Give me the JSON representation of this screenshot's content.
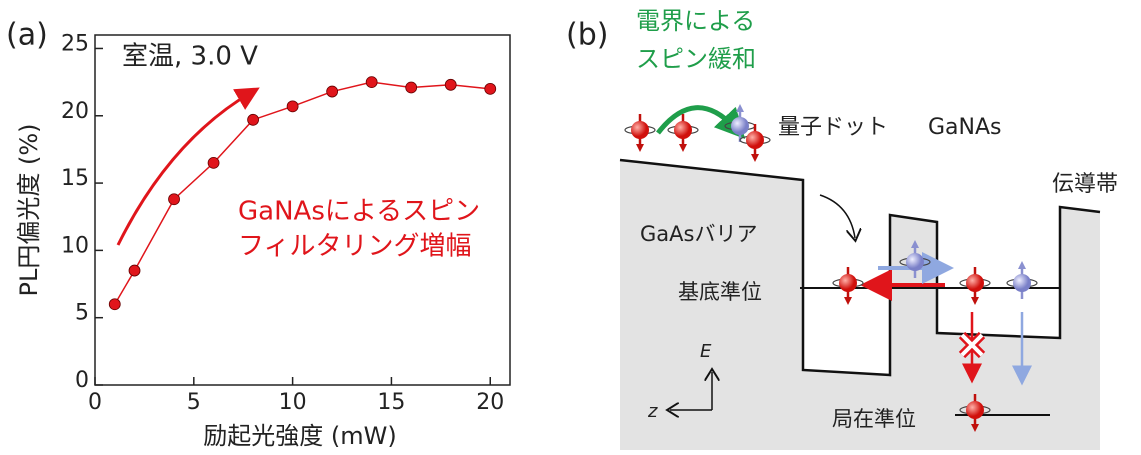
{
  "chart_data": {
    "type": "line",
    "panel_label": "(a)",
    "xlabel": "励起光強度 (mW)",
    "ylabel": "PL円偏光度 (%)",
    "annotations": [
      "室温, 3.0 V",
      "GaNAsによるスピン",
      "フィルタリング増幅"
    ],
    "x": [
      1,
      2,
      4,
      6,
      8,
      10,
      12,
      14,
      16,
      18,
      20
    ],
    "series": [
      {
        "name": null,
        "color": "#e0151b",
        "values": [
          6,
          8.5,
          13.8,
          16.5,
          19.7,
          20.7,
          21.8,
          22.5,
          22.1,
          22.3,
          22.0
        ]
      }
    ],
    "xlim": [
      0,
      21
    ],
    "ylim": [
      0,
      26
    ],
    "xticks": [
      0,
      5,
      10,
      15,
      20
    ],
    "yticks": [
      0,
      5,
      10,
      15,
      20,
      25
    ],
    "grid": false
  },
  "diagram": {
    "panel_label": "(b)",
    "relaxation": [
      "電界による",
      "スピン緩和"
    ],
    "quantum_dot": "量子ドット",
    "ganas": "GaNAs",
    "conduction_band": "伝導帯",
    "barrier": "GaAsバリア",
    "ground_level": "基底準位",
    "localized_level": "局在準位",
    "energy_axis": "E",
    "z_axis": "z"
  }
}
